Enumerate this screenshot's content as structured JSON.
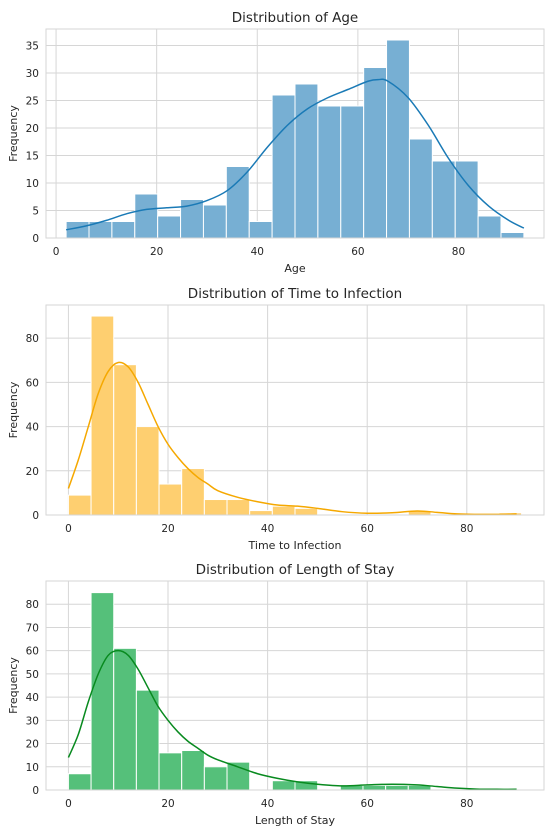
{
  "chart_data": [
    {
      "type": "bar",
      "subtype": "histogram-with-kde",
      "title": "Distribution of Age",
      "xlabel": "Age",
      "ylabel": "Frequency",
      "xlim": [
        -2,
        97
      ],
      "ylim": [
        0,
        38
      ],
      "xticks": [
        0,
        20,
        40,
        60,
        80
      ],
      "yticks": [
        0,
        5,
        10,
        15,
        20,
        25,
        30,
        35
      ],
      "grid": true,
      "color": "#77afd3",
      "kde_color": "#1a7ab6",
      "bin_edges": [
        2,
        6.55,
        11.1,
        15.65,
        20.2,
        24.75,
        29.3,
        33.85,
        38.4,
        42.95,
        47.5,
        52.05,
        56.6,
        61.15,
        65.7,
        70.25,
        74.8,
        79.35,
        83.9,
        88.45,
        93
      ],
      "counts": [
        3,
        3,
        3,
        8,
        4,
        7,
        6,
        13,
        3,
        26,
        28,
        24,
        24,
        31,
        36,
        18,
        14,
        14,
        4,
        1
      ],
      "kde": {
        "x": [
          2,
          6,
          10,
          14,
          18,
          22,
          26,
          30,
          34,
          38,
          42,
          46,
          50,
          54,
          58,
          62,
          64,
          66,
          70,
          74,
          78,
          82,
          86,
          90,
          93
        ],
        "y": [
          1.5,
          2.2,
          3.2,
          4.4,
          5.2,
          5.5,
          5.8,
          6.8,
          8.6,
          12.0,
          16.5,
          20.5,
          23.5,
          25.5,
          27.0,
          28.5,
          28.8,
          28.5,
          25.5,
          20.5,
          14.5,
          9.5,
          5.8,
          3.2,
          1.8
        ]
      }
    },
    {
      "type": "bar",
      "subtype": "histogram-with-kde",
      "title": "Distribution of Time to Infection",
      "xlabel": "Time to Infection",
      "ylabel": "Frequency",
      "xlim": [
        -4.5,
        95.5
      ],
      "ylim": [
        0,
        95
      ],
      "xticks": [
        0,
        20,
        40,
        60,
        80
      ],
      "yticks": [
        0,
        20,
        40,
        60,
        80
      ],
      "grid": true,
      "color": "#fecf70",
      "kde_color": "#f5a800",
      "bin_edges": [
        0,
        4.55,
        9.1,
        13.65,
        18.2,
        22.75,
        27.3,
        31.85,
        36.4,
        40.95,
        45.5,
        50.05,
        54.6,
        59.15,
        63.7,
        68.25,
        72.8,
        77.35,
        81.9,
        86.45,
        91
      ],
      "counts": [
        9,
        90,
        68,
        40,
        14,
        21,
        7,
        7,
        2,
        4,
        3,
        0,
        0,
        0,
        0,
        2,
        0,
        0,
        0,
        1
      ],
      "kde": {
        "x": [
          0,
          2,
          4,
          6,
          8,
          10,
          12,
          14,
          16,
          18,
          20,
          22,
          24,
          26,
          28,
          30,
          34,
          38,
          42,
          46,
          50,
          55,
          60,
          65,
          70,
          74,
          78,
          82,
          86,
          90
        ],
        "y": [
          12,
          25,
          40,
          55,
          65,
          69,
          67,
          60,
          50,
          40,
          32,
          26,
          21,
          17,
          14,
          11,
          8,
          6,
          4.5,
          4,
          3,
          1.5,
          0.8,
          1.0,
          1.8,
          1.2,
          0.5,
          0.3,
          0.3,
          0.5
        ]
      }
    },
    {
      "type": "bar",
      "subtype": "histogram-with-kde",
      "title": "Distribution of Length of Stay",
      "xlabel": "Length of Stay",
      "ylabel": "Frequency",
      "xlim": [
        -4.5,
        95.5
      ],
      "ylim": [
        0,
        90
      ],
      "xticks": [
        0,
        20,
        40,
        60,
        80
      ],
      "yticks": [
        0,
        10,
        20,
        30,
        40,
        50,
        60,
        70,
        80
      ],
      "grid": true,
      "color": "#55c07a",
      "kde_color": "#088a1f",
      "bin_edges": [
        0,
        4.55,
        9.1,
        13.65,
        18.2,
        22.75,
        27.3,
        31.85,
        36.4,
        40.95,
        45.5,
        50.05,
        54.6,
        59.15,
        63.7,
        68.25,
        72.8,
        77.35,
        81.9,
        86.45,
        91
      ],
      "counts": [
        7,
        85,
        61,
        43,
        16,
        17,
        10,
        12,
        0,
        4,
        4,
        0,
        2,
        2,
        2,
        2,
        0,
        0,
        0,
        0
      ],
      "kde": {
        "x": [
          0,
          2,
          4,
          6,
          8,
          10,
          12,
          14,
          16,
          18,
          20,
          22,
          24,
          26,
          28,
          30,
          34,
          38,
          42,
          46,
          50,
          55,
          60,
          65,
          70,
          74,
          78,
          82,
          86,
          90
        ],
        "y": [
          14,
          24,
          38,
          50,
          58,
          60,
          58,
          52,
          44,
          36,
          30,
          25,
          21,
          18,
          15,
          13,
          10,
          7,
          5,
          3.5,
          2.5,
          1.8,
          2.2,
          2.5,
          2.2,
          1.5,
          0.8,
          0.4,
          0.3,
          0.3
        ]
      }
    }
  ]
}
